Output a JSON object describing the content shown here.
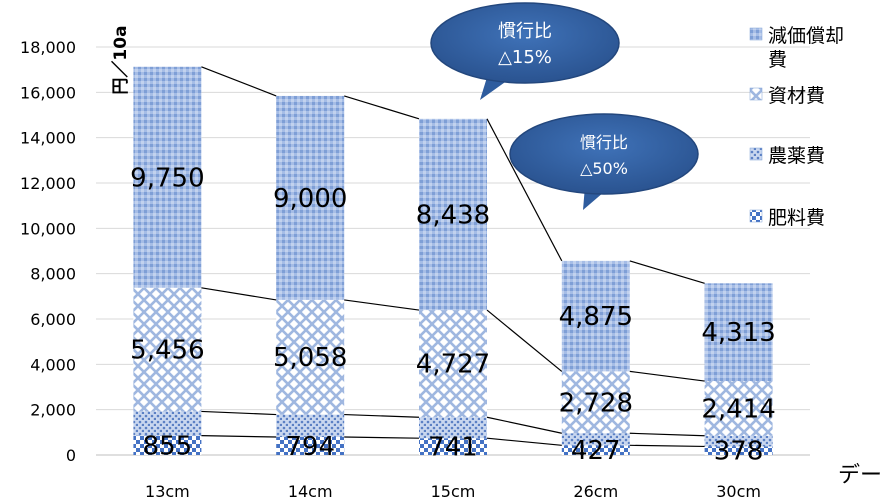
{
  "chart_data": {
    "type": "bar",
    "stacked": true,
    "categories": [
      "13cm",
      "14cm",
      "15cm",
      "26cm",
      "30cm"
    ],
    "series": [
      {
        "name": "肥料費",
        "values": [
          855,
          794,
          741,
          427,
          378
        ],
        "color": "#4472c4"
      },
      {
        "name": "農薬費",
        "values": [
          1066,
          990,
          925,
          533,
          470
        ],
        "color": "#8faadc"
      },
      {
        "name": "資材費",
        "values": [
          5456,
          5058,
          4727,
          2728,
          2414
        ],
        "color": "#b4c7e7"
      },
      {
        "name": "減価償却費",
        "values": [
          9750,
          9000,
          8438,
          4875,
          4313
        ],
        "color": "#8faadc"
      }
    ],
    "data_labels": {
      "肥料費": [
        "855",
        "794",
        "741",
        "427",
        "378"
      ],
      "資材費": [
        "5,456",
        "5,058",
        "4,727",
        "2,728",
        "2,414"
      ],
      "減価償却費": [
        "9,750",
        "9,000",
        "8,438",
        "4,875",
        "4,313"
      ]
    },
    "ylabel": "円／10a",
    "ylim": [
      0,
      18000
    ],
    "yticks": [
      "0",
      "2,000",
      "4,000",
      "6,000",
      "8,000",
      "10,000",
      "12,000",
      "14,000",
      "16,000",
      "18,000"
    ],
    "grid": true,
    "legend": {
      "placement": "right",
      "entries_top_to_bottom": [
        "減価償却費",
        "資材費",
        "農薬費",
        "肥料費"
      ]
    },
    "annotations": [
      {
        "line1": "慣行比",
        "line2": "△15%"
      },
      {
        "line1": "慣行比",
        "line2": "△50%"
      }
    ],
    "corner_text": "デー"
  }
}
